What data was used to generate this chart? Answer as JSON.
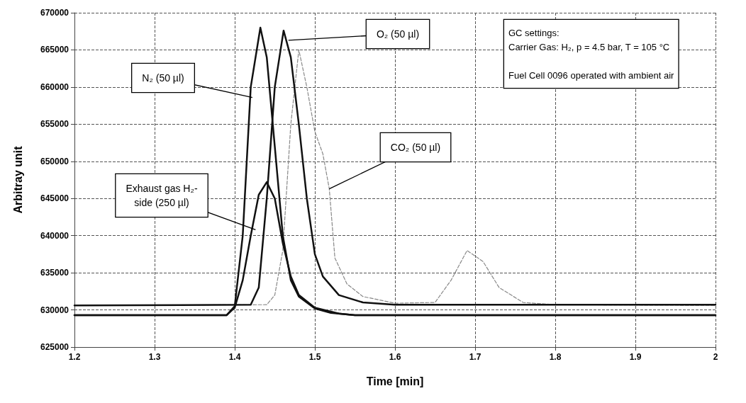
{
  "chart_data": {
    "type": "line",
    "xlabel": "Time [min]",
    "ylabel": "Arbitray unit",
    "xlim": [
      1.2,
      2
    ],
    "xticks": [
      1.2,
      1.3,
      1.4,
      1.5,
      1.6,
      1.7,
      1.8,
      1.9,
      2
    ],
    "ylim": [
      625000,
      670000
    ],
    "yticks": [
      625000,
      630000,
      635000,
      640000,
      645000,
      650000,
      655000,
      660000,
      665000,
      670000
    ],
    "grid": true,
    "marker": "none",
    "series": [
      {
        "color": "#111111",
        "line_style": "solid",
        "x": [
          1.2,
          1.39,
          1.4,
          1.41,
          1.42,
          1.432,
          1.44,
          1.45,
          1.46,
          1.47,
          1.48,
          1.5,
          1.52,
          1.55,
          2
        ],
        "values": [
          629300,
          629300,
          630500,
          640000,
          660000,
          668000,
          664000,
          652000,
          640000,
          634000,
          631800,
          630200,
          629600,
          629300,
          629300
        ]
      },
      {
        "color": "#111111",
        "line_style": "solid",
        "x": [
          1.2,
          1.42,
          1.43,
          1.44,
          1.45,
          1.461,
          1.47,
          1.48,
          1.49,
          1.5,
          1.51,
          1.53,
          1.56,
          1.6,
          2
        ],
        "values": [
          630600,
          630700,
          633000,
          645000,
          660000,
          667600,
          664000,
          655000,
          645000,
          637500,
          634500,
          632000,
          631000,
          630700,
          630700
        ]
      },
      {
        "color": "#888888",
        "line_style": "dashed",
        "x": [
          1.2,
          1.44,
          1.45,
          1.46,
          1.47,
          1.48,
          1.49,
          1.5,
          1.51,
          1.518,
          1.525,
          1.54,
          1.56,
          1.6,
          1.65,
          1.67,
          1.69,
          1.71,
          1.73,
          1.76,
          1.8,
          2
        ],
        "values": [
          630600,
          630700,
          632000,
          638000,
          655000,
          665000,
          660000,
          654000,
          651000,
          646300,
          637000,
          633500,
          631800,
          630900,
          631000,
          634000,
          638000,
          636500,
          633000,
          631000,
          630700,
          630600
        ]
      },
      {
        "color": "#111111",
        "line_style": "solid",
        "x": [
          1.2,
          1.39,
          1.4,
          1.41,
          1.42,
          1.43,
          1.44,
          1.45,
          1.46,
          1.47,
          1.48,
          1.5,
          1.53,
          1.55,
          2
        ],
        "values": [
          629300,
          629300,
          630300,
          634000,
          640000,
          645500,
          647200,
          645000,
          639000,
          634500,
          632000,
          630300,
          629500,
          629300,
          629300
        ]
      }
    ],
    "annotations": [
      {
        "text": "N₂ (50 µl)",
        "x": 1.422,
        "y": 658600
      },
      {
        "text": "O₂ (50 µl)",
        "x": 1.467,
        "y": 666300
      },
      {
        "text": "CO₂ (50 µl)",
        "x": 1.518,
        "y": 646300
      },
      {
        "text": "Exhaust gas H₂-\nside (250 µl)",
        "x": 1.426,
        "y": 640800
      },
      "GC settings:\nCarrier Gas: H₂, p = 4.5 bar, T = 105 °C\n\nFuel Cell 0096 operated with ambient air"
    ]
  }
}
